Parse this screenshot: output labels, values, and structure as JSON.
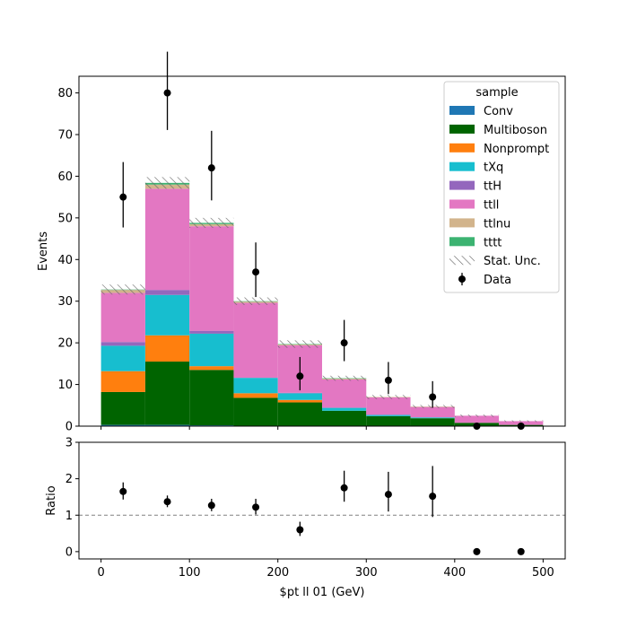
{
  "chart_data": [
    {
      "type": "bar",
      "stacked": true,
      "ylabel": "Events",
      "xlim": [
        -25,
        525
      ],
      "ylim": [
        0,
        84
      ],
      "xticks": [
        0,
        100,
        200,
        300,
        400,
        500
      ],
      "yticks": [
        0,
        10,
        20,
        30,
        40,
        50,
        60,
        70,
        80
      ],
      "bin_edges": [
        0,
        50,
        100,
        150,
        200,
        250,
        300,
        350,
        400,
        450,
        500
      ],
      "series": [
        {
          "name": "Conv",
          "color": "#1f77b4",
          "values": [
            0.3,
            0.3,
            0.2,
            0.1,
            0.1,
            0.1,
            0.1,
            0.0,
            0.0,
            0.0
          ]
        },
        {
          "name": "Multiboson",
          "color": "#006400",
          "values": [
            7.9,
            15.2,
            13.3,
            6.7,
            5.6,
            3.6,
            2.3,
            1.9,
            0.8,
            0.3
          ]
        },
        {
          "name": "Nonprompt",
          "color": "#ff7f0e",
          "values": [
            5.0,
            6.3,
            0.9,
            1.1,
            0.6,
            0.0,
            0.0,
            0.0,
            0.0,
            0.0
          ]
        },
        {
          "name": "tXq",
          "color": "#17becf",
          "values": [
            6.1,
            9.7,
            7.8,
            3.7,
            1.6,
            0.7,
            0.3,
            0.2,
            0.0,
            0.0
          ]
        },
        {
          "name": "ttH",
          "color": "#9467bd",
          "values": [
            0.9,
            1.2,
            0.7,
            0.0,
            0.1,
            0.0,
            0.0,
            0.0,
            0.0,
            0.0
          ]
        },
        {
          "name": "ttll",
          "color": "#e377c2",
          "values": [
            11.8,
            24.3,
            25.1,
            18.0,
            11.4,
            6.8,
            4.2,
            2.5,
            1.7,
            0.9
          ]
        },
        {
          "name": "ttlnu",
          "color": "#d2b48c",
          "values": [
            0.7,
            1.0,
            0.5,
            0.3,
            0.2,
            0.2,
            0.1,
            0.1,
            0.0,
            0.0
          ]
        },
        {
          "name": "tttt",
          "color": "#3cb371",
          "values": [
            0.1,
            0.4,
            0.3,
            0.1,
            0.1,
            0.1,
            0.0,
            0.0,
            0.0,
            0.0
          ]
        }
      ],
      "stat_unc": [
        1.2,
        1.4,
        1.2,
        0.9,
        0.9,
        0.6,
        0.5,
        0.4,
        0.3,
        0.2
      ],
      "stat_unc_label": "Stat. Unc.",
      "data": {
        "name": "Data",
        "x": [
          25,
          75,
          125,
          175,
          225,
          275,
          325,
          375,
          425,
          475
        ],
        "y": [
          55,
          80,
          62,
          37,
          12,
          20,
          11,
          7,
          0,
          0
        ],
        "err_low": [
          7.3,
          8.9,
          7.8,
          6.0,
          3.4,
          4.4,
          3.3,
          2.6,
          0,
          0
        ],
        "err_high": [
          8.4,
          9.9,
          8.9,
          7.1,
          4.6,
          5.5,
          4.4,
          3.8,
          0,
          0
        ]
      },
      "legend": {
        "title": "sample",
        "placement": "top-right"
      }
    },
    {
      "type": "scatter",
      "xlabel": "$pt ll 01 (GeV)",
      "ylabel": "Ratio",
      "xlim": [
        -25,
        525
      ],
      "ylim": [
        -0.2,
        3
      ],
      "xticks": [
        0,
        100,
        200,
        300,
        400,
        500
      ],
      "yticks": [
        0,
        1,
        2,
        3
      ],
      "reference_line": 1,
      "x": [
        25,
        75,
        125,
        175,
        225,
        275,
        325,
        375,
        425,
        475
      ],
      "y": [
        1.65,
        1.37,
        1.27,
        1.22,
        0.6,
        1.75,
        1.57,
        1.52,
        0,
        0
      ],
      "err_low": [
        0.22,
        0.15,
        0.16,
        0.2,
        0.17,
        0.38,
        0.47,
        0.57,
        0,
        0
      ],
      "err_high": [
        0.25,
        0.17,
        0.18,
        0.23,
        0.22,
        0.47,
        0.62,
        0.83,
        0,
        0
      ]
    }
  ]
}
